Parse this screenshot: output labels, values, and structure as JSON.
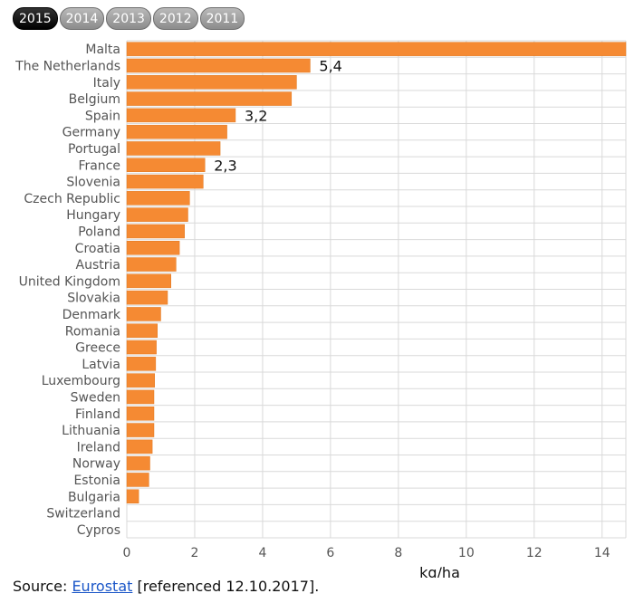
{
  "tabs": [
    {
      "label": "2015",
      "active": true
    },
    {
      "label": "2014",
      "active": false
    },
    {
      "label": "2013",
      "active": false
    },
    {
      "label": "2012",
      "active": false
    },
    {
      "label": "2011",
      "active": false
    }
  ],
  "source": {
    "prefix": "Source: ",
    "link_text": "Eurostat",
    "suffix": " [referenced 12.10.2017]."
  },
  "chart_data": {
    "type": "bar",
    "orientation": "horizontal",
    "categories": [
      "Malta",
      "The Netherlands",
      "Italy",
      "Belgium",
      "Spain",
      "Germany",
      "Portugal",
      "France",
      "Slovenia",
      "Czech Republic",
      "Hungary",
      "Poland",
      "Croatia",
      "Austria",
      "United Kingdom",
      "Slovakia",
      "Denmark",
      "Romania",
      "Greece",
      "Latvia",
      "Luxembourg",
      "Sweden",
      "Finland",
      "Lithuania",
      "Ireland",
      "Norway",
      "Estonia",
      "Bulgaria",
      "Switzerland",
      "Cypros"
    ],
    "values": [
      14.7,
      5.4,
      5.0,
      4.85,
      3.2,
      2.95,
      2.75,
      2.3,
      2.25,
      1.85,
      1.8,
      1.7,
      1.55,
      1.45,
      1.3,
      1.2,
      1.0,
      0.9,
      0.87,
      0.85,
      0.82,
      0.8,
      0.8,
      0.8,
      0.75,
      0.68,
      0.65,
      0.35,
      0,
      0
    ],
    "data_labels": [
      {
        "category": "The Netherlands",
        "text": "5,4"
      },
      {
        "category": "Spain",
        "text": "3,2"
      },
      {
        "category": "France",
        "text": "2,3"
      }
    ],
    "xlabel": "kg/ha",
    "ylabel": "",
    "xlim": [
      0,
      14.7
    ],
    "xticks": [
      0,
      2,
      4,
      6,
      8,
      10,
      12,
      14
    ],
    "grid": true,
    "colors": {
      "bar": "#f58a33",
      "bar_edge": "#e07820",
      "grid": "#d9d9d9",
      "label": "#555555"
    }
  }
}
